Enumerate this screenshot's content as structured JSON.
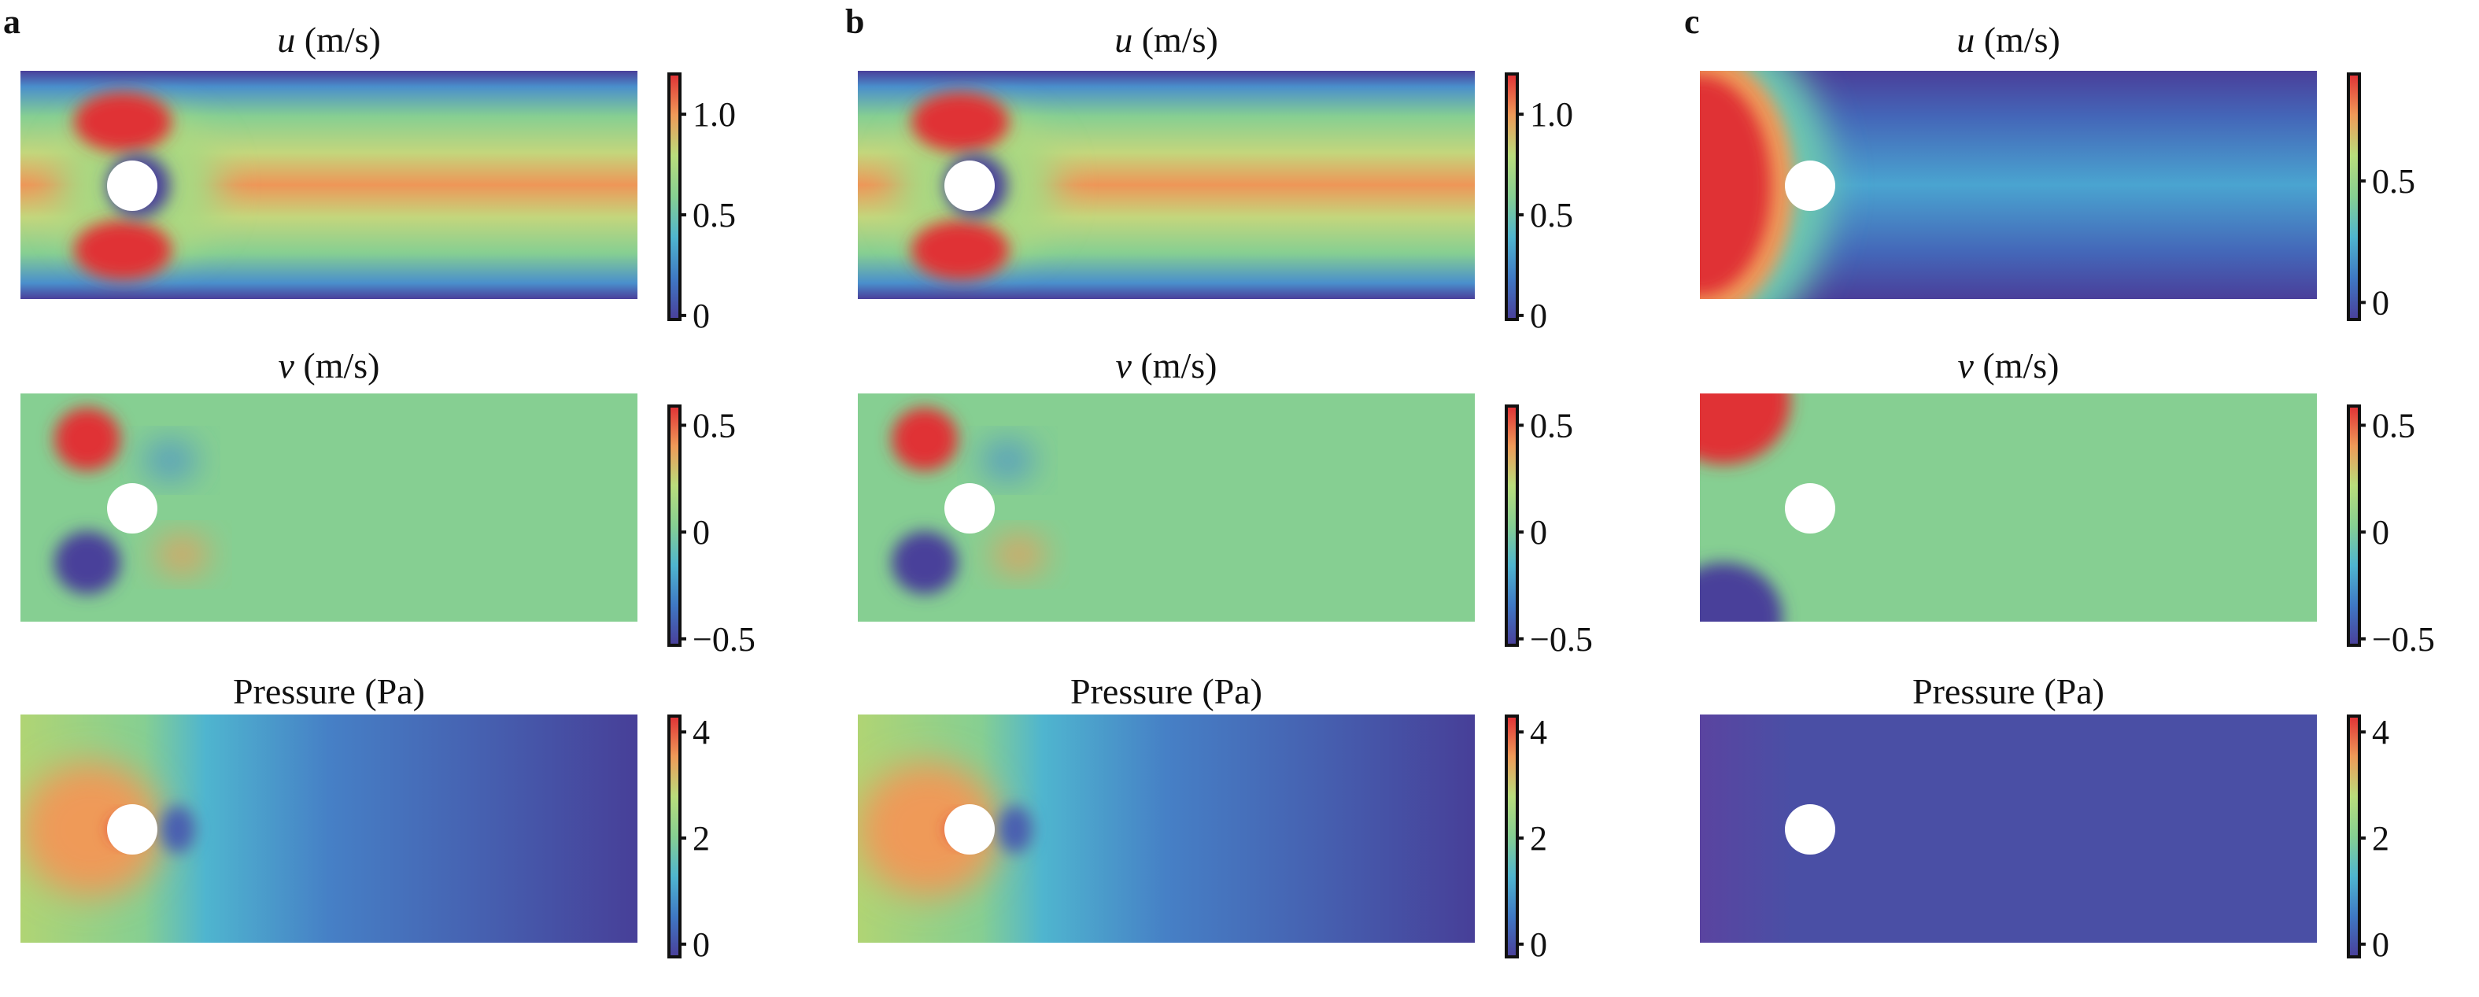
{
  "chart_data": [
    {
      "panel": "a",
      "type": "heatmap",
      "rows": [
        {
          "field": "u",
          "title_var": "u",
          "title_unit": "(m/s)",
          "colorbar": {
            "range": [
              -0.02,
              1.2
            ],
            "ticks": [
              0,
              0.5,
              1.0
            ],
            "tick_labels": [
              "0",
              "0.5",
              "1.0"
            ]
          }
        },
        {
          "field": "v",
          "title_var": "v",
          "title_unit": "(m/s)",
          "colorbar": {
            "range": [
              -0.53,
              0.59
            ],
            "ticks": [
              -0.5,
              0,
              0.5
            ],
            "tick_labels": [
              "−0.5",
              "0",
              "0.5"
            ]
          }
        },
        {
          "field": "p",
          "title_var": "",
          "title_unit": "Pressure (Pa)",
          "colorbar": {
            "range": [
              -0.24,
              4.3
            ],
            "ticks": [
              0,
              2,
              4
            ],
            "tick_labels": [
              "0",
              "2",
              "4"
            ]
          }
        }
      ]
    },
    {
      "panel": "b",
      "type": "heatmap",
      "rows": [
        {
          "field": "u",
          "title_var": "u",
          "title_unit": "(m/s)",
          "colorbar": {
            "range": [
              -0.02,
              1.2
            ],
            "ticks": [
              0,
              0.5,
              1.0
            ],
            "tick_labels": [
              "0",
              "0.5",
              "1.0"
            ]
          }
        },
        {
          "field": "v",
          "title_var": "v",
          "title_unit": "(m/s)",
          "colorbar": {
            "range": [
              -0.53,
              0.59
            ],
            "ticks": [
              -0.5,
              0,
              0.5
            ],
            "tick_labels": [
              "−0.5",
              "0",
              "0.5"
            ]
          }
        },
        {
          "field": "p",
          "title_var": "",
          "title_unit": "Pressure (Pa)",
          "colorbar": {
            "range": [
              -0.24,
              4.3
            ],
            "ticks": [
              0,
              2,
              4
            ],
            "tick_labels": [
              "0",
              "2",
              "4"
            ]
          }
        }
      ]
    },
    {
      "panel": "c",
      "type": "heatmap",
      "rows": [
        {
          "field": "u",
          "title_var": "u",
          "title_unit": "(m/s)",
          "colorbar": {
            "range": [
              -0.07,
              0.94
            ],
            "ticks": [
              0,
              0.5
            ],
            "tick_labels": [
              "0",
              "0.5"
            ]
          }
        },
        {
          "field": "v",
          "title_var": "v",
          "title_unit": "(m/s)",
          "colorbar": {
            "range": [
              -0.53,
              0.59
            ],
            "ticks": [
              -0.5,
              0,
              0.5
            ],
            "tick_labels": [
              "−0.5",
              "0",
              "0.5"
            ]
          }
        },
        {
          "field": "p",
          "title_var": "",
          "title_unit": "Pressure (Pa)",
          "colorbar": {
            "range": [
              -0.24,
              4.3
            ],
            "ticks": [
              0,
              2,
              4
            ],
            "tick_labels": [
              "0",
              "2",
              "4"
            ]
          }
        }
      ]
    }
  ],
  "colormap": [
    "#e03035",
    "#ef9a58",
    "#b9dd7c",
    "#86cf92",
    "#4fb5cf",
    "#3f78c4",
    "#4a3f9a"
  ]
}
